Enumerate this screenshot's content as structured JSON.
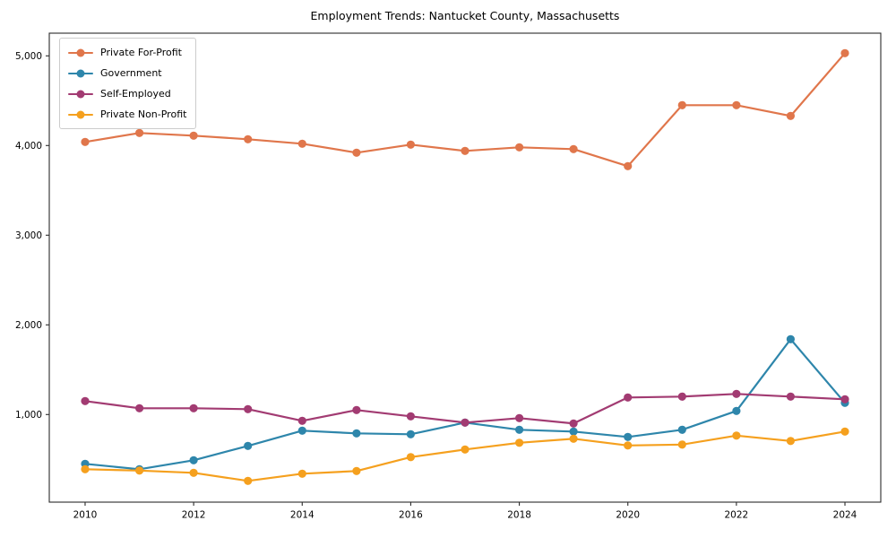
{
  "chart_data": {
    "type": "line",
    "title": "Employment Trends: Nantucket County, Massachusetts",
    "xlabel": "",
    "ylabel": "",
    "grid": false,
    "legend_position": "upper-left",
    "xlim": [
      2009.34,
      2024.66
    ],
    "ylim": [
      23,
      5253
    ],
    "x": [
      2010,
      2011,
      2012,
      2013,
      2014,
      2015,
      2016,
      2017,
      2018,
      2019,
      2020,
      2021,
      2022,
      2023,
      2024
    ],
    "x_ticks": [
      {
        "value": 2010,
        "label": "2010"
      },
      {
        "value": 2012,
        "label": "2012"
      },
      {
        "value": 2014,
        "label": "2014"
      },
      {
        "value": 2016,
        "label": "2016"
      },
      {
        "value": 2018,
        "label": "2018"
      },
      {
        "value": 2020,
        "label": "2020"
      },
      {
        "value": 2022,
        "label": "2022"
      },
      {
        "value": 2024,
        "label": "2024"
      }
    ],
    "y_ticks": [
      {
        "value": 1000,
        "label": "1,000"
      },
      {
        "value": 2000,
        "label": "2,000"
      },
      {
        "value": 3000,
        "label": "3,000"
      },
      {
        "value": 4000,
        "label": "4,000"
      },
      {
        "value": 5000,
        "label": "5,000"
      }
    ],
    "series": [
      {
        "name": "Private For-Profit",
        "color": "#E0764B",
        "values": [
          4040,
          4140,
          4110,
          4070,
          4020,
          3920,
          4010,
          3940,
          3980,
          3960,
          3770,
          4450,
          4450,
          4330,
          5030
        ]
      },
      {
        "name": "Government",
        "color": "#2E86AB",
        "values": [
          450,
          390,
          490,
          650,
          820,
          790,
          780,
          910,
          830,
          810,
          750,
          830,
          1040,
          1840,
          1130
        ]
      },
      {
        "name": "Self-Employed",
        "color": "#A23B72",
        "values": [
          1150,
          1070,
          1070,
          1060,
          930,
          1050,
          980,
          910,
          960,
          900,
          1190,
          1200,
          1230,
          1200,
          1170
        ]
      },
      {
        "name": "Private Non-Profit",
        "color": "#F5A01E",
        "values": [
          390,
          375,
          350,
          260,
          340,
          370,
          525,
          610,
          685,
          730,
          655,
          665,
          765,
          705,
          810
        ]
      }
    ]
  }
}
